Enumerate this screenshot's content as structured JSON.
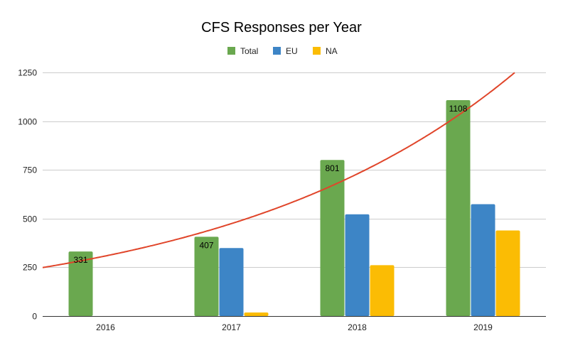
{
  "chart_data": {
    "type": "bar",
    "title": "CFS Responses per Year",
    "xlabel": "",
    "ylabel": "",
    "categories": [
      "2016",
      "2017",
      "2018",
      "2019"
    ],
    "series": [
      {
        "name": "Total",
        "color": "#6aa84f",
        "values": [
          331,
          407,
          801,
          1108
        ],
        "data_labels": [
          "331",
          "407",
          "801",
          "1108"
        ]
      },
      {
        "name": "EU",
        "color": "#3d85c6",
        "values": [
          null,
          349,
          522,
          574
        ]
      },
      {
        "name": "NA",
        "color": "#fbbc04",
        "values": [
          null,
          18,
          261,
          439
        ]
      }
    ],
    "trendline": {
      "series": "Total",
      "type": "exponential",
      "color": "#e0452a"
    },
    "ylim": [
      0,
      1250
    ],
    "yticks": [
      "0",
      "250",
      "500",
      "750",
      "1000",
      "1250"
    ],
    "grid": true,
    "legend_position": "top"
  }
}
